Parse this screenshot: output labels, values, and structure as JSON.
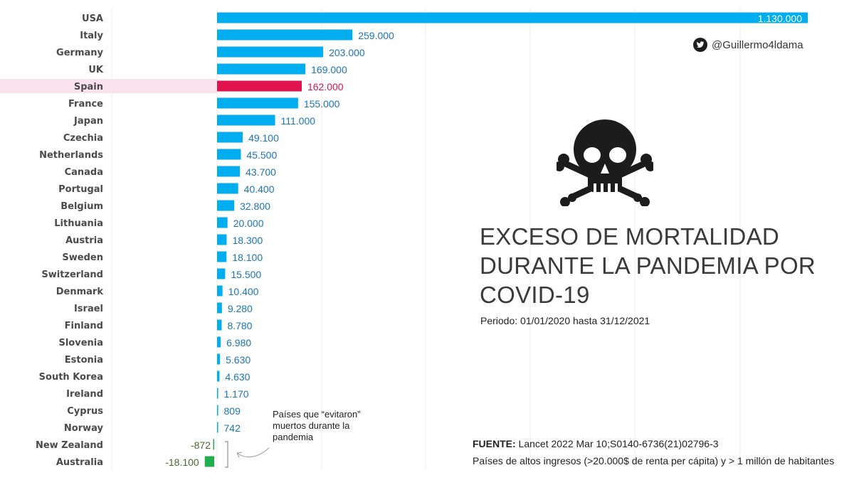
{
  "chart_data": {
    "type": "bar",
    "orientation": "horizontal",
    "title": "EXCESO DE MORTALIDAD DURANTE LA PANDEMIA POR COVID-19",
    "subtitle": "Periodo: 01/01/2020 hasta 31/12/2021",
    "categories": [
      "USA",
      "Italy",
      "Germany",
      "UK",
      "Spain",
      "France",
      "Japan",
      "Czechia",
      "Netherlands",
      "Canada",
      "Portugal",
      "Belgium",
      "Lithuania",
      "Austria",
      "Sweden",
      "Switzerland",
      "Denmark",
      "Israel",
      "Finland",
      "Slovenia",
      "Estonia",
      "South Korea",
      "Ireland",
      "Cyprus",
      "Norway",
      "New Zealand",
      "Australia"
    ],
    "values": [
      1130000,
      259000,
      203000,
      169000,
      162000,
      155000,
      111000,
      49100,
      45500,
      43700,
      40400,
      32800,
      20000,
      18300,
      18100,
      15500,
      10400,
      9280,
      8780,
      6980,
      5630,
      4630,
      1170,
      809,
      742,
      -872,
      -18100
    ],
    "labels": [
      "1.130.000",
      "259.000",
      "203.000",
      "169.000",
      "162.000",
      "155.000",
      "111.000",
      "49.100",
      "45.500",
      "43.700",
      "40.400",
      "32.800",
      "20.000",
      "18.300",
      "18.100",
      "15.500",
      "10.400",
      "9.280",
      "8.780",
      "6.980",
      "5.630",
      "4.630",
      "1.170",
      "809",
      "742",
      "-872",
      "-18.100"
    ],
    "highlight": "Spain",
    "grid": true,
    "colors": {
      "positive": "#00aeef",
      "highlight": "#e0134f",
      "highlight_band": "#fbe3ee",
      "negative": "#1fb04b",
      "positive_label": "#1b75bb",
      "negative_label": "#4c6a2e",
      "grid": "#ececec"
    }
  },
  "header": {
    "twitter_handle": "@Guillermo4ldama",
    "icon": "twitter-bird-icon",
    "decoration": "skull-and-crossbones-icon"
  },
  "annotation": {
    "text": "Países que “evitaron” muertos durante la pandemia"
  },
  "footer": {
    "source_label": "FUENTE:",
    "source_text": " Lancet 2022 Mar 10;S0140-6736(21)02796-3",
    "note": "Países de altos ingresos (>20.000$ de renta per cápita) y > 1 millón de habitantes"
  }
}
